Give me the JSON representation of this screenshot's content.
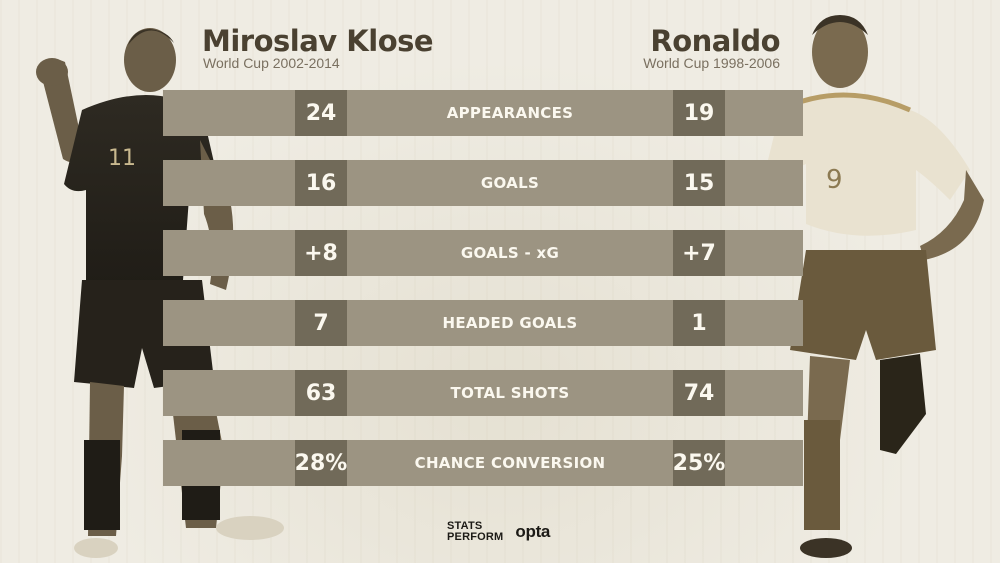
{
  "left_player": {
    "name": "Miroslav Klose",
    "subtitle": "World Cup 2002-2014",
    "shirt_number": "11"
  },
  "right_player": {
    "name": "Ronaldo",
    "subtitle": "World Cup 1998-2006",
    "shirt_number": "9"
  },
  "stats": [
    {
      "label": "APPEARANCES",
      "left": "24",
      "right": "19"
    },
    {
      "label": "GOALS",
      "left": "16",
      "right": "15"
    },
    {
      "label": "GOALS - xG",
      "left": "+8",
      "right": "+7"
    },
    {
      "label": "HEADED GOALS",
      "left": "7",
      "right": "1"
    },
    {
      "label": "TOTAL SHOTS",
      "left": "63",
      "right": "74"
    },
    {
      "label": "CHANCE CONVERSION",
      "left": "28%",
      "right": "25%"
    }
  ],
  "footer": {
    "stats_logo_line1": "STATS",
    "stats_logo_line2": "PERFORM",
    "opta_logo": "opta"
  },
  "colors": {
    "background": "#efece3",
    "bar": "#9c9482",
    "value_box": "#716a59",
    "text_light": "#fbf8ef",
    "title": "#4a4131"
  }
}
